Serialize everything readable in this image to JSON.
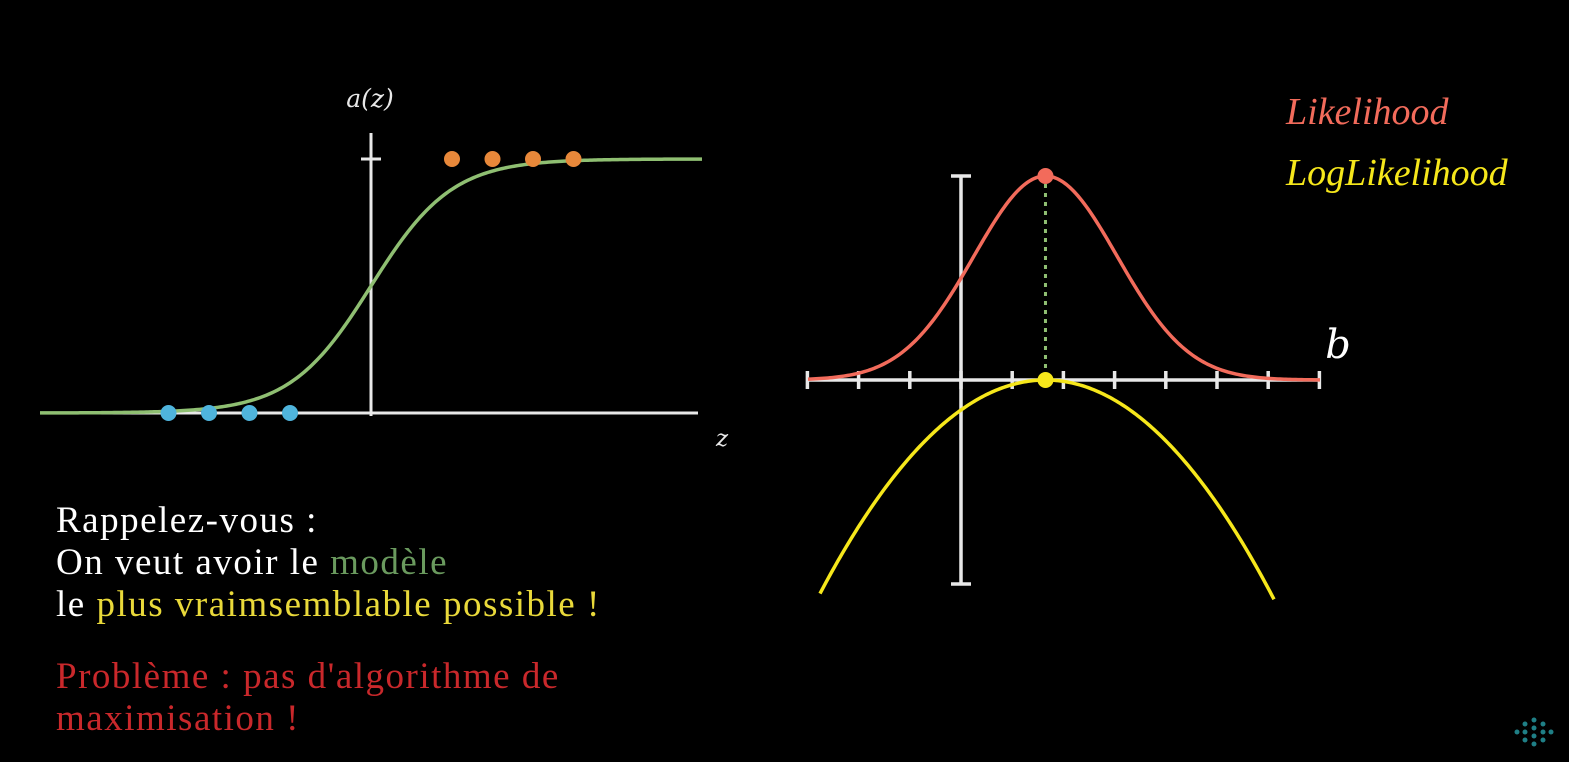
{
  "colors": {
    "background": "#000000",
    "axis": "#e8e8e8",
    "sigmoid": "#8fbf72",
    "class0_points": "#4fb4dc",
    "class1_points": "#e8883a",
    "likelihood": "#f26b5b",
    "loglikelihood": "#f6e71b",
    "dotted_max": "#8fbf72",
    "highlight_model": "#6a9a5e",
    "highlight_plausible": "#e9d93a",
    "problem": "#c9282b",
    "watermark": "#1f7f86"
  },
  "chart_data": [
    {
      "type": "line",
      "ylabel": "a(z)",
      "xlabel": "z",
      "x_domain": [
        -8,
        8
      ],
      "y_domain": [
        0,
        1
      ],
      "series": [
        {
          "kind": "logistic",
          "k": 1.0,
          "x0": 0
        }
      ],
      "points": [
        {
          "group": "class0",
          "x": [
            -5,
            -4,
            -3,
            -2
          ],
          "y": 0
        },
        {
          "group": "class1",
          "x": [
            2,
            3,
            4,
            5
          ],
          "y": 1
        }
      ]
    },
    {
      "type": "line",
      "xlabel": "b",
      "legend": [
        "Likelihood",
        "LogLikelihood"
      ],
      "x_domain": [
        -3,
        7
      ],
      "x_ticks": [
        -3,
        -2,
        -1,
        0,
        1,
        2,
        3,
        4,
        5,
        6,
        7
      ],
      "maximum_b": 1.65,
      "series": [
        {
          "name": "Likelihood",
          "kind": "gaussian",
          "mu": 1.65,
          "sigma": 1.4
        },
        {
          "name": "LogLikelihood",
          "kind": "parabola",
          "vertex": 1.65
        }
      ],
      "legend_position": "top-right"
    }
  ],
  "text": {
    "line1": "Rappelez-vous :",
    "line2_prefix": "On veut avoir le ",
    "line2_highlight": "modèle",
    "line3_prefix": "le ",
    "line3_highlight": "plus vraimsemblable possible !",
    "problem_line1": "Problème : pas d'algorithme de",
    "problem_line2": "maximisation !"
  }
}
